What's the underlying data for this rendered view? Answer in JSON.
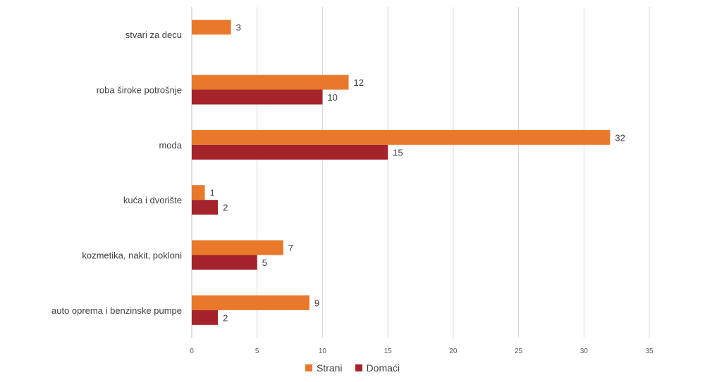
{
  "chart_data": {
    "type": "bar",
    "orientation": "horizontal",
    "categories": [
      "stvari za decu",
      "roba široke potrošnje",
      "moda",
      "kuća i dvorište",
      "kozmetika, nakit, pokloni",
      "auto oprema i benzinske pumpe"
    ],
    "series": [
      {
        "name": "Strani",
        "color": "#E8792B",
        "values": [
          3,
          12,
          32,
          1,
          7,
          9
        ]
      },
      {
        "name": "Domaći",
        "color": "#A5232A",
        "values": [
          null,
          10,
          15,
          2,
          5,
          2
        ]
      }
    ],
    "xlim": [
      0,
      35
    ],
    "xticks": [
      0,
      5,
      10,
      15,
      20,
      25,
      30,
      35
    ],
    "grid": "vertical",
    "legend": "bottom",
    "data_labels": true
  }
}
